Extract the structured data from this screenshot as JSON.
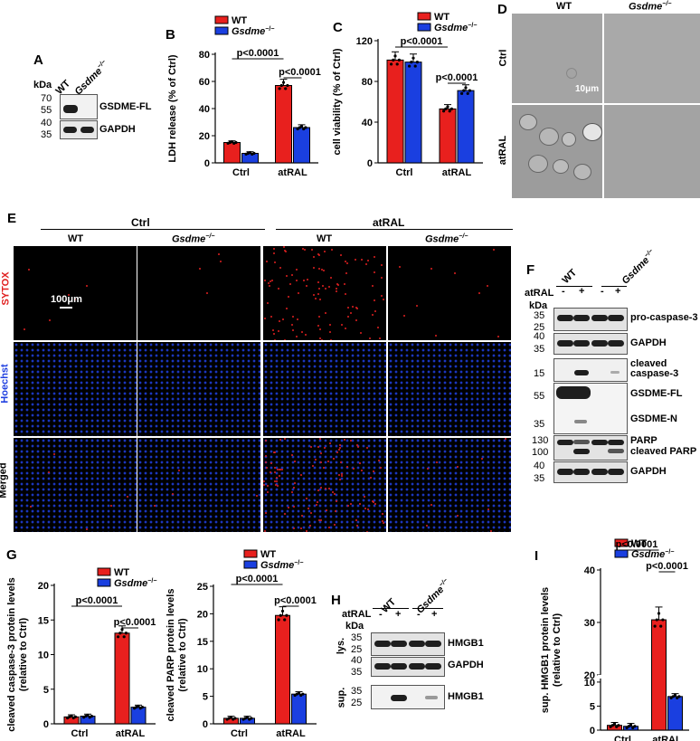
{
  "colors": {
    "wt": "#e8201e",
    "ko": "#1a3fe0",
    "sytox": "#e02020",
    "hoechst": "#2040e0"
  },
  "labels": {
    "A": "A",
    "B": "B",
    "C": "C",
    "D": "D",
    "E": "E",
    "F": "F",
    "G": "G",
    "H": "H",
    "I": "I"
  },
  "common": {
    "wt": "WT",
    "ko": "Gsdme",
    "ko_sup": "−/−",
    "ctrl": "Ctrl",
    "atral": "atRAL",
    "kda": "kDa",
    "minus": "-",
    "plus": "+"
  },
  "panelA": {
    "markers": [
      "70",
      "55",
      "40",
      "35"
    ],
    "rows": [
      "GSDME-FL",
      "GAPDH"
    ]
  },
  "panelD": {
    "rows": [
      "Ctrl",
      "atRAL"
    ],
    "scale": "10μm"
  },
  "panelE": {
    "rows": [
      "SYTOX",
      "Hoechst",
      "Merged"
    ],
    "scale": "100μm"
  },
  "panelF": {
    "treat": "atRAL",
    "markers": [
      "35",
      "25",
      "40",
      "35",
      "15",
      "55",
      "35",
      "130",
      "100",
      "40",
      "35"
    ],
    "rows": [
      "pro-caspase-3",
      "GAPDH",
      "cleaved",
      "caspase-3",
      "GSDME-FL",
      "GSDME-N",
      "PARP",
      "cleaved PARP",
      "GAPDH"
    ]
  },
  "panelH": {
    "treat": "atRAL",
    "markers": [
      "35",
      "25",
      "40",
      "35",
      "35",
      "25"
    ],
    "groups": [
      "lys.",
      "sup."
    ],
    "rows": [
      "HMGB1",
      "GAPDH",
      "HMGB1"
    ]
  },
  "chart_data": [
    {
      "id": "B",
      "type": "bar",
      "categories": [
        "Ctrl",
        "atRAL"
      ],
      "ylabel": "LDH release (% of Ctrl)",
      "ylim": [
        0,
        80
      ],
      "yticks": [
        0,
        20,
        40,
        60,
        80
      ],
      "series": [
        {
          "name": "WT",
          "values": [
            15,
            57
          ]
        },
        {
          "name": "Gsdme−/−",
          "values": [
            7,
            26
          ]
        }
      ],
      "annotations": [
        "p<0.0001",
        "p<0.0001"
      ]
    },
    {
      "id": "C",
      "type": "bar",
      "categories": [
        "Ctrl",
        "atRAL"
      ],
      "ylabel": "cell viability (% of Ctrl)",
      "ylim": [
        0,
        120
      ],
      "yticks": [
        0,
        40,
        80,
        120
      ],
      "series": [
        {
          "name": "WT",
          "values": [
            101,
            53
          ]
        },
        {
          "name": "Gsdme−/−",
          "values": [
            99,
            71
          ]
        }
      ],
      "annotations": [
        "p<0.0001",
        "p<0.0001"
      ]
    },
    {
      "id": "G1",
      "type": "bar",
      "categories": [
        "Ctrl",
        "atRAL"
      ],
      "ylabel": "cleaved caspase-3 protein levels (relative to Ctrl)",
      "ylim": [
        0,
        20
      ],
      "yticks": [
        0,
        5,
        10,
        15,
        20
      ],
      "series": [
        {
          "name": "WT",
          "values": [
            1,
            13.1
          ]
        },
        {
          "name": "Gsdme−/−",
          "values": [
            1.1,
            2.4
          ]
        }
      ],
      "annotations": [
        "p<0.0001",
        "p<0.0001"
      ]
    },
    {
      "id": "G2",
      "type": "bar",
      "categories": [
        "Ctrl",
        "atRAL"
      ],
      "ylabel": "cleaved PARP protein levels (relative to Ctrl)",
      "ylim": [
        0,
        25
      ],
      "yticks": [
        0,
        5,
        10,
        15,
        20,
        25
      ],
      "series": [
        {
          "name": "WT",
          "values": [
            1,
            19.7
          ]
        },
        {
          "name": "Gsdme−/−",
          "values": [
            1,
            5.4
          ]
        }
      ],
      "annotations": [
        "p<0.0001",
        "p<0.0001"
      ]
    },
    {
      "id": "I",
      "type": "bar",
      "categories": [
        "Ctrl",
        "atRAL"
      ],
      "ylabel": "sup. HMGB1 protein levels (relative to Ctrl)",
      "ylim": [
        0,
        40
      ],
      "yticks": [
        0,
        5,
        10,
        20,
        30,
        40
      ],
      "axis_break": [
        10,
        20
      ],
      "series": [
        {
          "name": "WT",
          "values": [
            1,
            30.5
          ]
        },
        {
          "name": "Gsdme−/−",
          "values": [
            0.8,
            7
          ]
        }
      ],
      "annotations": [
        "p<0.0001",
        "p<0.0001"
      ]
    }
  ]
}
